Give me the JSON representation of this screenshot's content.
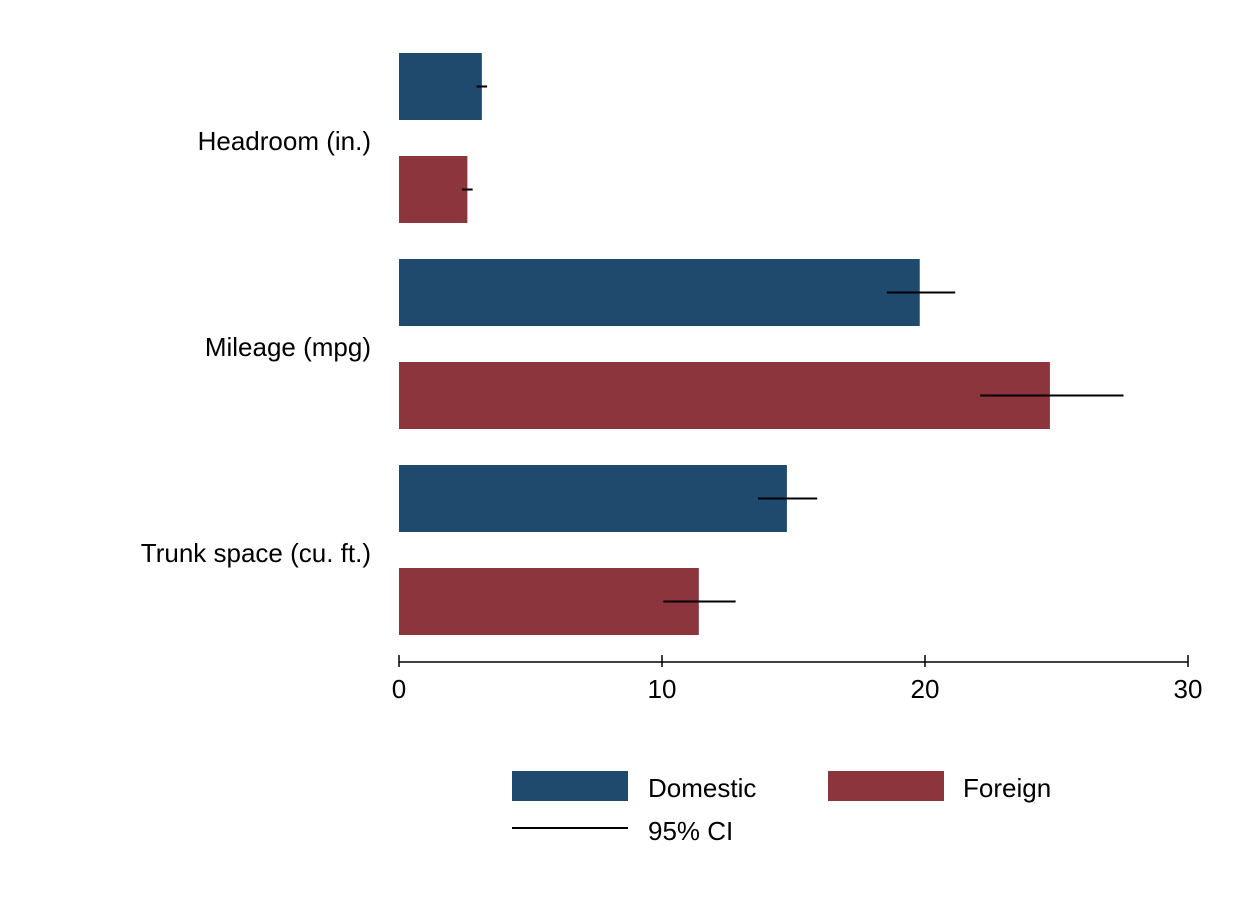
{
  "chart_data": {
    "type": "bar",
    "orientation": "horizontal",
    "categories": [
      "Headroom (in.)",
      "Mileage (mpg)",
      "Trunk space (cu. ft.)"
    ],
    "series": [
      {
        "name": "Domestic",
        "color": "#1f4a6e",
        "values": [
          3.15,
          19.8,
          14.75
        ],
        "ci_low": [
          2.95,
          18.55,
          13.65
        ],
        "ci_high": [
          3.35,
          21.15,
          15.9
        ]
      },
      {
        "name": "Foreign",
        "color": "#8c353c",
        "values": [
          2.6,
          24.75,
          11.4
        ],
        "ci_low": [
          2.4,
          22.1,
          10.05
        ],
        "ci_high": [
          2.8,
          27.55,
          12.8
        ]
      }
    ],
    "ci_legend_label": "95% CI",
    "xlim": [
      0,
      30
    ],
    "xticks": [
      "0",
      "10",
      "20",
      "30"
    ],
    "xtick_values": [
      0,
      10,
      20,
      30
    ],
    "title": "",
    "xlabel": "",
    "ylabel": "",
    "grid": false,
    "legend_position": "bottom"
  }
}
